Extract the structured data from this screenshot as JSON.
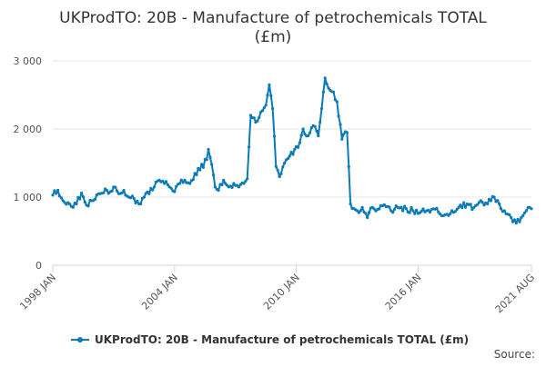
{
  "colors": {
    "series": "#0a7ab8",
    "grid": "#e6e6e6",
    "axis": "#ccd6eb"
  },
  "chart_data": {
    "type": "line",
    "title_lines": [
      "UKProdTO: 20B - Manufacture of petrochemicals TOTAL",
      "(£m)"
    ],
    "xlabel": "",
    "ylabel": "",
    "ylim": [
      0,
      3000
    ],
    "y_ticks": [
      {
        "value": 0,
        "label": "0"
      },
      {
        "value": 1000,
        "label": "1 000"
      },
      {
        "value": 2000,
        "label": "2 000"
      },
      {
        "value": 3000,
        "label": "3 000"
      }
    ],
    "x_range": [
      "1998-01",
      "2021-08"
    ],
    "x_ticks": [
      {
        "date": "1998-01",
        "label": "1998 JAN"
      },
      {
        "date": "2004-01",
        "label": "2004 JAN"
      },
      {
        "date": "2010-01",
        "label": "2010 JAN"
      },
      {
        "date": "2016-01",
        "label": "2016 JAN"
      },
      {
        "date": "2021-08",
        "label": "2021 AUG"
      }
    ],
    "legend": {
      "position": "bottom",
      "label": "UKProdTO: 20B - Manufacture of petrochemicals TOTAL (£m)"
    },
    "source_label": "Source:",
    "grid": true,
    "series": [
      {
        "name": "UKProdTO: 20B - Manufacture of petrochemicals TOTAL (£m)",
        "anchors": [
          [
            "1998-01",
            1030
          ],
          [
            "1998-04",
            1100
          ],
          [
            "1998-07",
            950
          ],
          [
            "1998-10",
            920
          ],
          [
            "1999-01",
            850
          ],
          [
            "1999-03",
            900
          ],
          [
            "1999-06",
            1060
          ],
          [
            "1999-09",
            880
          ],
          [
            "2000-01",
            950
          ],
          [
            "2000-04",
            1050
          ],
          [
            "2000-08",
            1120
          ],
          [
            "2000-11",
            1080
          ],
          [
            "2001-01",
            1150
          ],
          [
            "2001-04",
            1050
          ],
          [
            "2001-07",
            1100
          ],
          [
            "2001-10",
            1000
          ],
          [
            "2002-01",
            980
          ],
          [
            "2002-04",
            900
          ],
          [
            "2002-07",
            1000
          ],
          [
            "2002-10",
            1050
          ],
          [
            "2003-01",
            1150
          ],
          [
            "2003-04",
            1250
          ],
          [
            "2003-07",
            1200
          ],
          [
            "2003-10",
            1150
          ],
          [
            "2004-01",
            1080
          ],
          [
            "2004-04",
            1200
          ],
          [
            "2004-07",
            1250
          ],
          [
            "2004-10",
            1200
          ],
          [
            "2005-01",
            1350
          ],
          [
            "2005-04",
            1400
          ],
          [
            "2005-08",
            1550
          ],
          [
            "2005-09",
            1700
          ],
          [
            "2005-11",
            1480
          ],
          [
            "2006-01",
            1150
          ],
          [
            "2006-03",
            1100
          ],
          [
            "2006-06",
            1250
          ],
          [
            "2006-09",
            1150
          ],
          [
            "2006-12",
            1200
          ],
          [
            "2007-03",
            1150
          ],
          [
            "2007-06",
            1200
          ],
          [
            "2007-08",
            1270
          ],
          [
            "2007-10",
            2200
          ],
          [
            "2008-01",
            2100
          ],
          [
            "2008-04",
            2250
          ],
          [
            "2008-07",
            2350
          ],
          [
            "2008-09",
            2650
          ],
          [
            "2008-11",
            2300
          ],
          [
            "2009-01",
            1450
          ],
          [
            "2009-03",
            1300
          ],
          [
            "2009-06",
            1500
          ],
          [
            "2009-09",
            1600
          ],
          [
            "2009-12",
            1700
          ],
          [
            "2010-03",
            1800
          ],
          [
            "2010-05",
            2000
          ],
          [
            "2010-08",
            1900
          ],
          [
            "2010-11",
            2050
          ],
          [
            "2011-02",
            1900
          ],
          [
            "2011-04",
            2300
          ],
          [
            "2011-06",
            2750
          ],
          [
            "2011-08",
            2600
          ],
          [
            "2011-10",
            2550
          ],
          [
            "2012-01",
            2400
          ],
          [
            "2012-04",
            1850
          ],
          [
            "2012-07",
            1950
          ],
          [
            "2012-09",
            900
          ],
          [
            "2013-01",
            800
          ],
          [
            "2013-04",
            850
          ],
          [
            "2013-07",
            700
          ],
          [
            "2013-10",
            850
          ],
          [
            "2014-01",
            820
          ],
          [
            "2014-06",
            860
          ],
          [
            "2014-09",
            800
          ],
          [
            "2015-01",
            850
          ],
          [
            "2015-06",
            830
          ],
          [
            "2015-10",
            800
          ],
          [
            "2016-01",
            760
          ],
          [
            "2016-06",
            800
          ],
          [
            "2016-10",
            830
          ],
          [
            "2017-01",
            780
          ],
          [
            "2017-06",
            750
          ],
          [
            "2018-01",
            850
          ],
          [
            "2018-06",
            900
          ],
          [
            "2018-10",
            850
          ],
          [
            "2019-01",
            920
          ],
          [
            "2019-06",
            900
          ],
          [
            "2019-10",
            1000
          ],
          [
            "2020-01",
            900
          ],
          [
            "2020-04",
            800
          ],
          [
            "2020-08",
            700
          ],
          [
            "2020-11",
            620
          ],
          [
            "2021-02",
            700
          ],
          [
            "2021-05",
            800
          ],
          [
            "2021-08",
            830
          ]
        ]
      }
    ]
  }
}
